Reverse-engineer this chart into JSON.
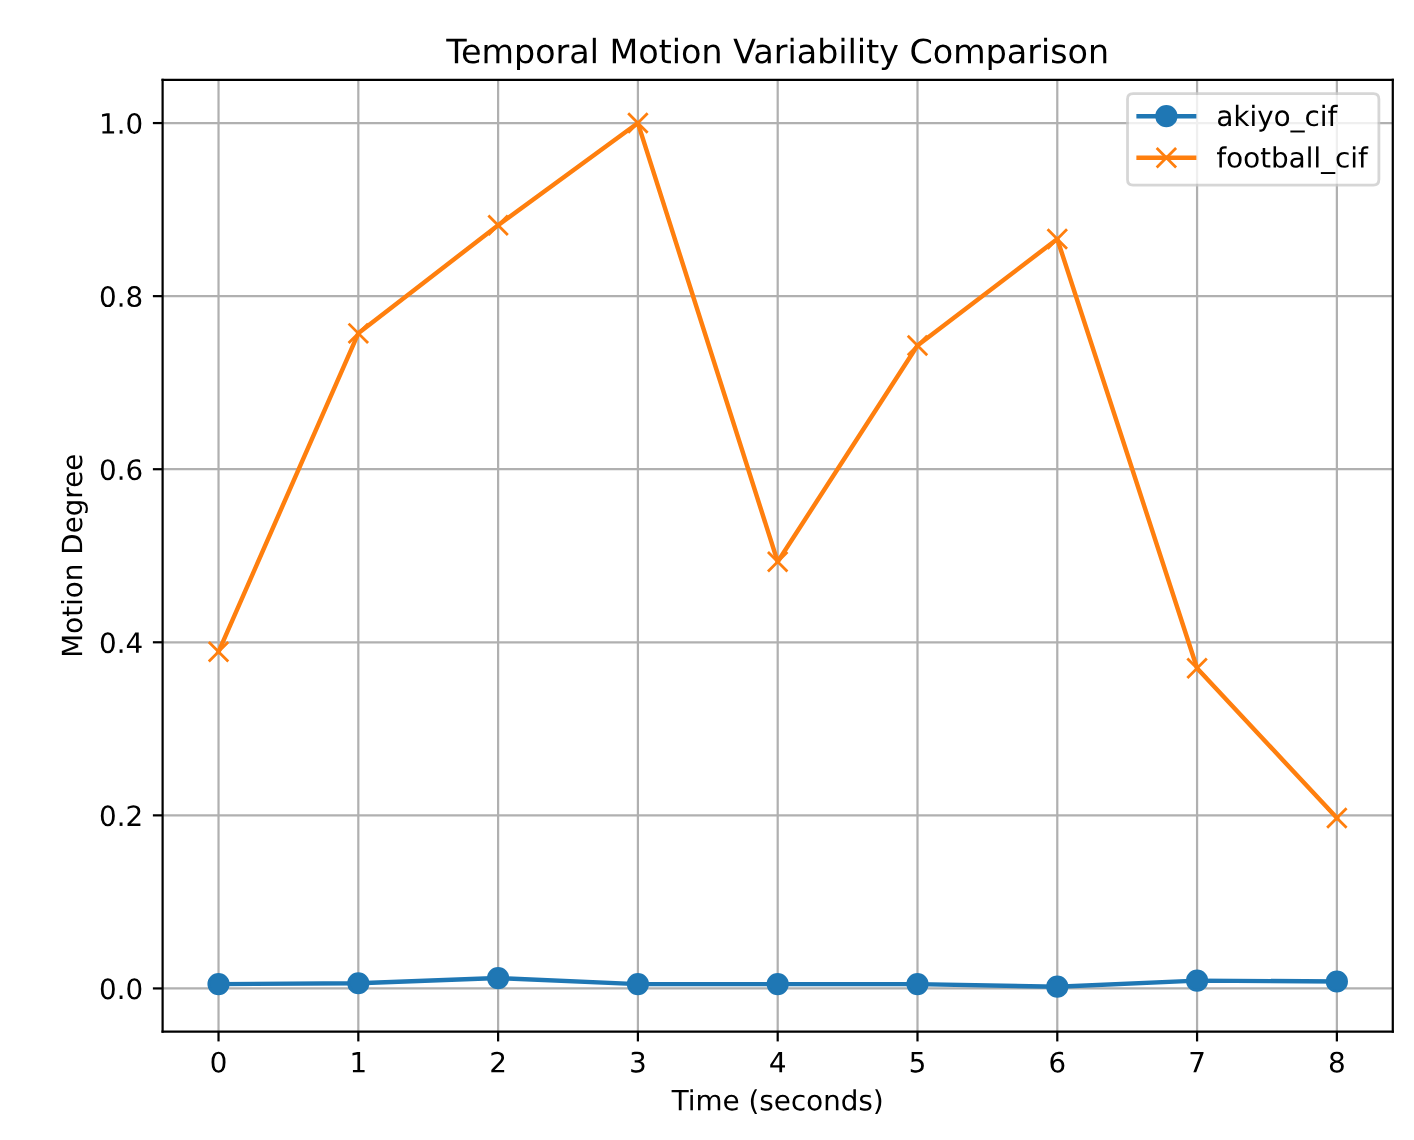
{
  "chart_data": {
    "type": "line",
    "title": "Temporal Motion Variability Comparison",
    "xlabel": "Time (seconds)",
    "ylabel": "Motion Degree",
    "x": [
      0,
      1,
      2,
      3,
      4,
      5,
      6,
      7,
      8
    ],
    "series": [
      {
        "name": "akiyo_cif",
        "color": "#1f77b4",
        "marker": "circle",
        "values": [
          0.005,
          0.006,
          0.012,
          0.005,
          0.005,
          0.005,
          0.002,
          0.009,
          0.008
        ]
      },
      {
        "name": "football_cif",
        "color": "#ff7f0e",
        "marker": "cross",
        "values": [
          0.389,
          0.757,
          0.882,
          1.0,
          0.493,
          0.743,
          0.866,
          0.37,
          0.197
        ]
      }
    ],
    "xlim": [
      -0.4,
      8.4
    ],
    "ylim": [
      -0.05,
      1.05
    ],
    "xticks": [
      0,
      1,
      2,
      3,
      4,
      5,
      6,
      7,
      8
    ],
    "yticks": [
      {
        "value": 0,
        "label": "0.0"
      },
      {
        "value": 0.2,
        "label": "0.2"
      },
      {
        "value": 0.4,
        "label": "0.4"
      },
      {
        "value": 0.6,
        "label": "0.6"
      },
      {
        "value": 0.8,
        "label": "0.8"
      },
      {
        "value": 1.0,
        "label": "1.0"
      }
    ],
    "grid": true,
    "legend": "top right",
    "line_style": "solid"
  }
}
